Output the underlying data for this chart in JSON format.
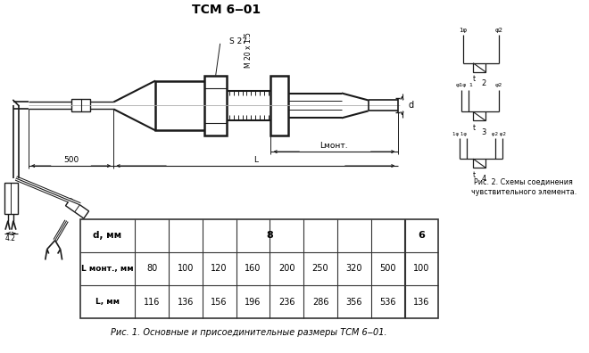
{
  "title": "ТСМ 6‒01",
  "table": {
    "col0_header": "d, мм",
    "col8_header": "8",
    "col9_header": "6",
    "row1_label": "L монт., мм",
    "row1_values": [
      80,
      100,
      120,
      160,
      200,
      250,
      320,
      500,
      100
    ],
    "row2_label": "L, мм",
    "row2_values": [
      116,
      136,
      156,
      196,
      236,
      286,
      356,
      536,
      136
    ]
  },
  "fig1_caption": "Рис. 1. Основные и присоединительные размеры ТСМ 6‒01.",
  "fig2_caption": "Рис. 2. Схемы соединения\nчувствительного элемента.",
  "bg_color": "#ffffff",
  "line_color": "#1a1a1a"
}
